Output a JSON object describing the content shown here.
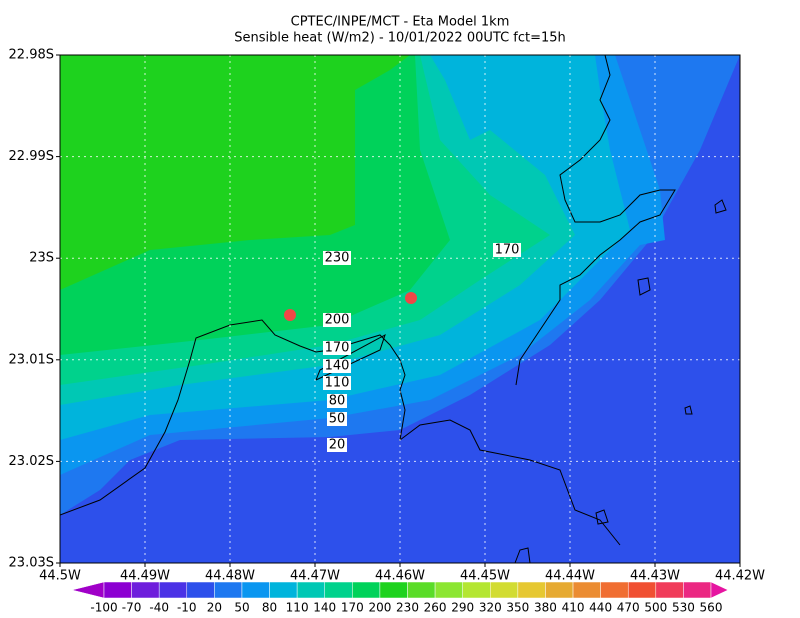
{
  "header": {
    "line1": "CPTEC/INPE/MCT -  Eta Model 1km",
    "line2": "Sensible heat (W/m2) - 10/01/2022 00UTC fct=15h"
  },
  "x_ticks": [
    "44.5W",
    "44.49W",
    "44.48W",
    "44.47W",
    "44.46W",
    "44.45W",
    "44.44W",
    "44.43W",
    "44.42W"
  ],
  "y_ticks": [
    "22.98S",
    "22.99S",
    "23S",
    "23.01S",
    "23.02S",
    "23.03S"
  ],
  "contour_labels": [
    230,
    200,
    170,
    140,
    110,
    80,
    50,
    20,
    170
  ],
  "colorbar": {
    "levels": [
      -100,
      -70,
      -40,
      -10,
      20,
      50,
      80,
      110,
      140,
      170,
      200,
      230,
      260,
      290,
      320,
      350,
      380,
      410,
      440,
      470,
      500,
      530,
      560
    ],
    "colors": [
      "#a000c8",
      "#8c00d2",
      "#6e1edc",
      "#4b32e6",
      "#2d50eb",
      "#1e78f0",
      "#0a96f0",
      "#00b4dc",
      "#00c8b4",
      "#00d28c",
      "#00d25a",
      "#1ed21e",
      "#5adc28",
      "#8ce632",
      "#b4e632",
      "#d2dc32",
      "#e6c832",
      "#e6aa32",
      "#eb8c32",
      "#f06e32",
      "#f05032",
      "#f03c5a",
      "#eb2882",
      "#e614a0"
    ]
  }
}
